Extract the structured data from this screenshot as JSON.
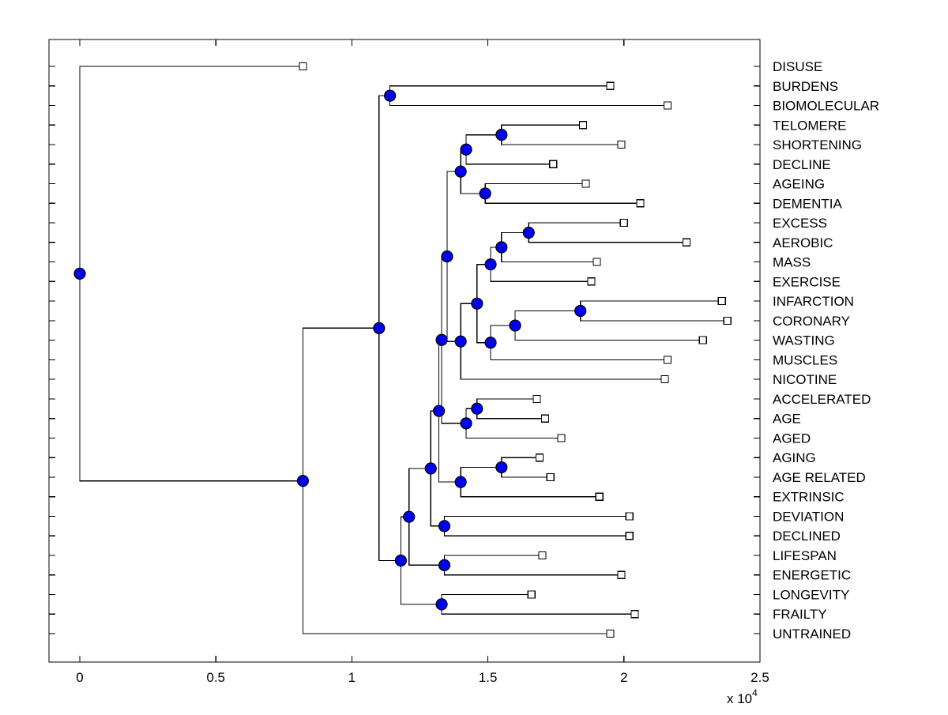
{
  "figure": {
    "title": "",
    "kind": "phylogenetic-tree-dendrogram"
  },
  "axis": {
    "x_ticks": [
      "0",
      "0.5",
      "1",
      "1.5",
      "2",
      "2.5"
    ],
    "x_tick_values": [
      0,
      0.5,
      1,
      1.5,
      2,
      2.5
    ],
    "multiplier_base": "x 10",
    "multiplier_exponent": "4"
  },
  "colors": {
    "background": "#ffffff",
    "branch": "#000000",
    "node_fill": "#0000ee",
    "marker_edge": "#000000",
    "leaf_fill": "#ffffff",
    "text": "#000000"
  },
  "chart_data": {
    "type": "dendrogram",
    "orientation": "left-to-right",
    "title": "",
    "xlabel": "x 10^4",
    "x_axis": {
      "ticks": [
        0,
        0.5,
        1,
        1.5,
        2,
        2.5
      ],
      "unit_multiplier": 10000,
      "grid": false
    },
    "leaf_marker": "open-square",
    "internal_marker": "filled-circle",
    "leaves": [
      {
        "label": "DISUSE",
        "x": 0.82
      },
      {
        "label": "BURDENS",
        "x": 1.95
      },
      {
        "label": "BIOMOLECULAR",
        "x": 2.16
      },
      {
        "label": "TELOMERE",
        "x": 1.85
      },
      {
        "label": "SHORTENING",
        "x": 1.99
      },
      {
        "label": "DECLINE",
        "x": 1.74
      },
      {
        "label": "AGEING",
        "x": 1.86
      },
      {
        "label": "DEMENTIA",
        "x": 2.06
      },
      {
        "label": "EXCESS",
        "x": 2.0
      },
      {
        "label": "AEROBIC",
        "x": 2.23
      },
      {
        "label": "MASS",
        "x": 1.9
      },
      {
        "label": "EXERCISE",
        "x": 1.88
      },
      {
        "label": "INFARCTION",
        "x": 2.36
      },
      {
        "label": "CORONARY",
        "x": 2.38
      },
      {
        "label": "WASTING",
        "x": 2.29
      },
      {
        "label": "MUSCLES",
        "x": 2.16
      },
      {
        "label": "NICOTINE",
        "x": 2.15
      },
      {
        "label": "ACCELERATED",
        "x": 1.68
      },
      {
        "label": "AGE",
        "x": 1.71
      },
      {
        "label": "AGED",
        "x": 1.77
      },
      {
        "label": "AGING",
        "x": 1.69
      },
      {
        "label": "AGE RELATED",
        "x": 1.73
      },
      {
        "label": "EXTRINSIC",
        "x": 1.91
      },
      {
        "label": "DEVIATION",
        "x": 2.02
      },
      {
        "label": "DECLINED",
        "x": 2.02
      },
      {
        "label": "LIFESPAN",
        "x": 1.7
      },
      {
        "label": "ENERGETIC",
        "x": 1.99
      },
      {
        "label": "LONGEVITY",
        "x": 1.66
      },
      {
        "label": "FRAILTY",
        "x": 2.04
      },
      {
        "label": "UNTRAINED",
        "x": 1.95
      }
    ],
    "internal_nodes": [
      {
        "id": "N0",
        "children": [
          "L1",
          "L2"
        ],
        "x": 1.14
      },
      {
        "id": "N1",
        "children": [
          "L3",
          "L4"
        ],
        "x": 1.55
      },
      {
        "id": "N2",
        "children": [
          "N1",
          "L5"
        ],
        "x": 1.42
      },
      {
        "id": "N3",
        "children": [
          "L6",
          "L7"
        ],
        "x": 1.49
      },
      {
        "id": "N4",
        "children": [
          "N2",
          "N3"
        ],
        "x": 1.4
      },
      {
        "id": "N5",
        "children": [
          "L8",
          "L9"
        ],
        "x": 1.65
      },
      {
        "id": "N6",
        "children": [
          "N5",
          "L10"
        ],
        "x": 1.55
      },
      {
        "id": "N7",
        "children": [
          "N6",
          "L11"
        ],
        "x": 1.51
      },
      {
        "id": "N8",
        "children": [
          "L12",
          "L13"
        ],
        "x": 1.84
      },
      {
        "id": "N9",
        "children": [
          "N8",
          "L14"
        ],
        "x": 1.6
      },
      {
        "id": "N10",
        "children": [
          "N9",
          "L15"
        ],
        "x": 1.51
      },
      {
        "id": "N11",
        "children": [
          "N7",
          "N10"
        ],
        "x": 1.46
      },
      {
        "id": "N12",
        "children": [
          "N11",
          "L16"
        ],
        "x": 1.4
      },
      {
        "id": "N13",
        "children": [
          "N4",
          "N12"
        ],
        "x": 1.35
      },
      {
        "id": "N14",
        "children": [
          "L17",
          "L18"
        ],
        "x": 1.46
      },
      {
        "id": "N15",
        "children": [
          "N14",
          "L19"
        ],
        "x": 1.42
      },
      {
        "id": "N16",
        "children": [
          "N13",
          "N15"
        ],
        "x": 1.33
      },
      {
        "id": "N17",
        "children": [
          "L20",
          "L21"
        ],
        "x": 1.55
      },
      {
        "id": "N18",
        "children": [
          "N17",
          "L22"
        ],
        "x": 1.4
      },
      {
        "id": "N19",
        "children": [
          "N16",
          "N18"
        ],
        "x": 1.32
      },
      {
        "id": "N20",
        "children": [
          "L23",
          "L24"
        ],
        "x": 1.34
      },
      {
        "id": "N21",
        "children": [
          "N19",
          "N20"
        ],
        "x": 1.29
      },
      {
        "id": "N22",
        "children": [
          "L25",
          "L26"
        ],
        "x": 1.34
      },
      {
        "id": "N23",
        "children": [
          "N21",
          "N22"
        ],
        "x": 1.21
      },
      {
        "id": "N24",
        "children": [
          "L27",
          "L28"
        ],
        "x": 1.33
      },
      {
        "id": "N25",
        "children": [
          "N23",
          "N24"
        ],
        "x": 1.18
      },
      {
        "id": "N26",
        "children": [
          "N0",
          "N25"
        ],
        "x": 1.1
      },
      {
        "id": "N27",
        "children": [
          "N26",
          "L29"
        ],
        "x": 0.82
      },
      {
        "id": "N28",
        "children": [
          "L0",
          "N27"
        ],
        "x": 0.0
      }
    ]
  }
}
